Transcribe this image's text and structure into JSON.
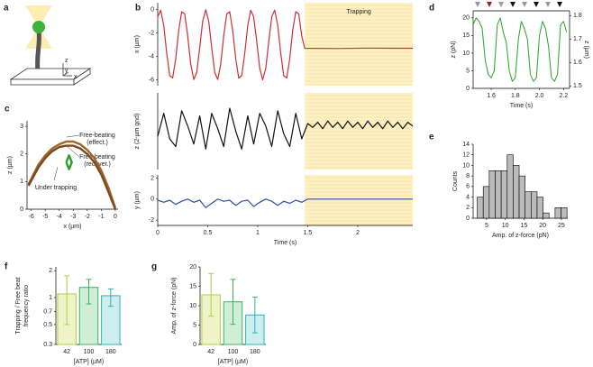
{
  "schematic": {
    "panel": "a",
    "axes": [
      "x",
      "y",
      "z"
    ]
  },
  "chart_data": [
    {
      "type": "line",
      "panel": "b",
      "y_label": "x (µm)",
      "annotation": "Trapping",
      "highlight": [
        1.47,
        2.55
      ],
      "xlim": [
        0,
        2.55
      ],
      "ylim": [
        -6.5,
        0.6
      ],
      "yticks": [
        0,
        -2,
        -4,
        -6
      ],
      "series": [
        {
          "name": "x",
          "color": "#d03030",
          "x": [
            0,
            0.03,
            0.06,
            0.09,
            0.12,
            0.15,
            0.18,
            0.21,
            0.24,
            0.27,
            0.3,
            0.33,
            0.36,
            0.39,
            0.42,
            0.45,
            0.48,
            0.51,
            0.54,
            0.57,
            0.6,
            0.63,
            0.66,
            0.69,
            0.72,
            0.75,
            0.78,
            0.81,
            0.84,
            0.87,
            0.9,
            0.93,
            0.96,
            0.99,
            1.02,
            1.05,
            1.08,
            1.11,
            1.14,
            1.17,
            1.2,
            1.23,
            1.26,
            1.29,
            1.32,
            1.35,
            1.38,
            1.41,
            1.44,
            1.47,
            1.8,
            2.1,
            2.4,
            2.55
          ],
          "values": [
            -0.63,
            -0.04,
            -1.35,
            -3.72,
            -5.64,
            -5.84,
            -4.2,
            -1.77,
            -0.17,
            -0.36,
            -2.25,
            -4.65,
            -5.97,
            -5.37,
            -3.24,
            -0.99,
            0,
            -0.99,
            -3.24,
            -5.37,
            -5.97,
            -4.65,
            -2.25,
            -0.36,
            -0.17,
            -1.8,
            -4.2,
            -5.85,
            -5.64,
            -3.72,
            -1.35,
            -0.04,
            -0.63,
            -2.73,
            -5.01,
            -6,
            -5.01,
            -2.73,
            -0.63,
            -0.04,
            -1.35,
            -3.72,
            -5.64,
            -5.84,
            -4.2,
            -1.77,
            -0.17,
            -0.36,
            -2.25,
            -3.3,
            -3.32,
            -3.28,
            -3.3,
            -3.3
          ]
        }
      ]
    },
    {
      "type": "line",
      "y_label": "z (2-µm gnd)",
      "highlight": [
        1.47,
        2.55
      ],
      "xlim": [
        0,
        2.55
      ],
      "ylim": [
        -1.5,
        1.5
      ],
      "series": [
        {
          "name": "z",
          "color": "#111111",
          "x": [
            0,
            0.06,
            0.12,
            0.18,
            0.24,
            0.3,
            0.36,
            0.42,
            0.48,
            0.54,
            0.6,
            0.66,
            0.72,
            0.78,
            0.84,
            0.9,
            0.96,
            1.02,
            1.08,
            1.14,
            1.2,
            1.26,
            1.32,
            1.38,
            1.44,
            1.5,
            1.55,
            1.6,
            1.65,
            1.7,
            1.75,
            1.8,
            1.85,
            1.9,
            1.95,
            2,
            2.05,
            2.1,
            2.15,
            2.2,
            2.25,
            2.3,
            2.35,
            2.4,
            2.45,
            2.5,
            2.55
          ],
          "values": [
            -0.2,
            0.7,
            -0.3,
            -0.6,
            0.8,
            0.2,
            -0.5,
            0.6,
            -0.7,
            0.7,
            0.1,
            -0.6,
            0.9,
            0,
            -0.7,
            0.6,
            -0.5,
            0.7,
            0.2,
            -0.6,
            0.8,
            -0.1,
            -0.6,
            0.7,
            -0.3,
            0.3,
            0.15,
            0.35,
            0.1,
            0.4,
            0.15,
            0.35,
            0.1,
            0.4,
            0.15,
            0.35,
            0.1,
            0.4,
            0.15,
            0.35,
            0.1,
            0.4,
            0.15,
            0.35,
            0.1,
            0.35,
            0.2
          ]
        }
      ]
    },
    {
      "type": "line",
      "y_label": "y (µm)",
      "x_label": "Time (s)",
      "highlight": [
        1.47,
        2.55
      ],
      "xlim": [
        0,
        2.55
      ],
      "xticks": [
        0,
        0.5,
        1,
        1.5,
        2
      ],
      "ylim": [
        -2.5,
        2.3
      ],
      "yticks": [
        2,
        0,
        -2
      ],
      "series": [
        {
          "name": "y",
          "color": "#3050a0",
          "x": [
            0,
            0.06,
            0.12,
            0.18,
            0.24,
            0.3,
            0.36,
            0.42,
            0.48,
            0.54,
            0.6,
            0.66,
            0.72,
            0.78,
            0.84,
            0.9,
            0.96,
            1.02,
            1.08,
            1.14,
            1.2,
            1.26,
            1.32,
            1.38,
            1.44,
            1.5,
            1.8,
            2.1,
            2.4,
            2.55
          ],
          "values": [
            -0.1,
            -0.3,
            -0.1,
            -0.5,
            -0.2,
            0,
            -0.3,
            -0.1,
            -0.8,
            -0.4,
            0,
            -0.2,
            -0.1,
            -0.6,
            -0.2,
            -0.1,
            -0.7,
            -0.3,
            0,
            -0.2,
            -0.6,
            -0.2,
            -0.4,
            -0.1,
            -0.3,
            0,
            0,
            0,
            0,
            0
          ]
        }
      ]
    },
    {
      "type": "line",
      "panel": "c",
      "x_label": "x (µm)",
      "y_label": "z (µm)",
      "xlim": [
        -6.3,
        0.2
      ],
      "xticks": [
        -6,
        -5,
        -4,
        -3,
        -2,
        -1,
        0
      ],
      "ylim": [
        0,
        3.2
      ],
      "yticks": [
        0,
        1,
        2,
        3
      ],
      "annotations": [
        {
          "lines": [
            "Free-beating",
            "(effect.)"
          ],
          "color": "#c07830"
        },
        {
          "lines": [
            "Free-beating",
            "(recover.)"
          ],
          "color": "#2ca02c"
        },
        {
          "lines": [
            "Under trapping"
          ],
          "color": "#2ca02c"
        }
      ],
      "series": [
        {
          "name": "Free-beating (effect.)",
          "color": "#a0672c",
          "x": [
            -6.2,
            -5.5,
            -5,
            -4.5,
            -4,
            -3.5,
            -3,
            -2.5,
            -2,
            -1.5,
            -1,
            -0.5,
            0
          ],
          "values": [
            0.9,
            1.6,
            1.95,
            2.2,
            2.35,
            2.45,
            2.45,
            2.35,
            2.15,
            1.85,
            1.4,
            0.8,
            0.05
          ]
        },
        {
          "name": "Free-beating (recover.)",
          "color": "#7a4a20",
          "x": [
            -6.2,
            -5.5,
            -5,
            -4.5,
            -4,
            -3.5,
            -3,
            -2.5,
            -2,
            -1.5,
            -1,
            -0.5,
            0
          ],
          "values": [
            0.85,
            1.5,
            1.85,
            2.1,
            2.25,
            2.3,
            2.3,
            2.2,
            2,
            1.7,
            1.25,
            0.65,
            0
          ]
        },
        {
          "name": "Under trapping",
          "color": "#2ca02c",
          "x": [
            -3.5,
            -3.3,
            -3.1,
            -3.3,
            -3.5
          ],
          "values": [
            1.7,
            1.95,
            1.7,
            1.45,
            1.7
          ]
        }
      ]
    },
    {
      "type": "line",
      "panel": "d",
      "x_label": "Time (s)",
      "y_label": "z (pN)",
      "y2_label": "z (µm)",
      "xlim": [
        1.45,
        2.25
      ],
      "xticks": [
        1.6,
        1.8,
        {
          "value": 2,
          "label": "2.0"
        },
        2.2
      ],
      "ylim": [
        0,
        22
      ],
      "yticks": [
        0,
        5,
        10,
        15,
        20
      ],
      "y2lim": [
        1.49,
        1.82
      ],
      "y2ticks": [
        1.5,
        1.6,
        1.7,
        1.8
      ],
      "series": [
        {
          "name": "z",
          "color": "#2ca02c",
          "x": [
            1.45,
            1.475,
            1.5,
            1.525,
            1.55,
            1.575,
            1.6,
            1.625,
            1.65,
            1.675,
            1.7,
            1.725,
            1.75,
            1.775,
            1.8,
            1.825,
            1.85,
            1.875,
            1.9,
            1.925,
            1.95,
            1.975,
            2,
            2.025,
            2.05,
            2.075,
            2.1,
            2.125,
            2.15,
            2.175,
            2.2,
            2.225
          ],
          "values": [
            18,
            20,
            19,
            17,
            8,
            4,
            3,
            5,
            18,
            20,
            16,
            13,
            5,
            2,
            3,
            14,
            19,
            17,
            14,
            4,
            2,
            3,
            15,
            19,
            17,
            12,
            3,
            2,
            4,
            18,
            19,
            16
          ]
        }
      ]
    },
    {
      "type": "histogram",
      "panel": "e",
      "x_label": "Amp. of z-force (pN)",
      "y_label": "Counts",
      "color": "#bbbbbb",
      "xlim": [
        1.4,
        26.7
      ],
      "xticks": [
        5,
        10,
        15,
        20,
        25
      ],
      "ylim": [
        0,
        14
      ],
      "yticks": [
        0,
        2,
        4,
        6,
        8,
        10,
        12,
        14
      ],
      "bins": [
        2.5,
        4.1,
        5.7,
        7.3,
        8.9,
        10.5,
        12.1,
        13.7,
        15.3,
        16.9,
        18.5,
        20.1,
        21.7,
        23.3,
        24.9,
        26.5
      ],
      "values": [
        4,
        6,
        9,
        9,
        9,
        12,
        10,
        8,
        5,
        5,
        4,
        1,
        0,
        2,
        2
      ]
    },
    {
      "type": "bar",
      "panel": "f",
      "x_label": "[ATP] (µM)",
      "y_label": [
        "Trapping / Free beat",
        "frequency ratio"
      ],
      "log_y": true,
      "categories": [
        "42",
        "100",
        "180"
      ],
      "values": [
        1.1,
        1.3,
        1.05
      ],
      "error_low": [
        0.5,
        0.85,
        0.8
      ],
      "error_high": [
        1.75,
        1.6,
        1.25
      ],
      "colors": [
        "#eef3c8",
        "#cfeed6",
        "#cdeeee"
      ],
      "edge_colors": [
        "#b0cc50",
        "#40b060",
        "#30b0b0"
      ],
      "ylim": [
        0.3,
        2.2
      ],
      "yticks": [
        0.3,
        0.5,
        0.7,
        1,
        2
      ]
    },
    {
      "type": "bar",
      "panel": "g",
      "x_label": "[ATP] (µM)",
      "y_label": "Amp. of z-force (pN)",
      "categories": [
        "42",
        "100",
        "180"
      ],
      "values": [
        12.8,
        11,
        7.6
      ],
      "errors": [
        5.5,
        5.8,
        4.6
      ],
      "colors": [
        "#eef3c8",
        "#cfeed6",
        "#cdeeee"
      ],
      "edge_colors": [
        "#b0cc50",
        "#40b060",
        "#30b0b0"
      ],
      "ylim": [
        0,
        20
      ],
      "yticks": [
        0,
        5,
        10,
        15,
        20
      ]
    }
  ]
}
